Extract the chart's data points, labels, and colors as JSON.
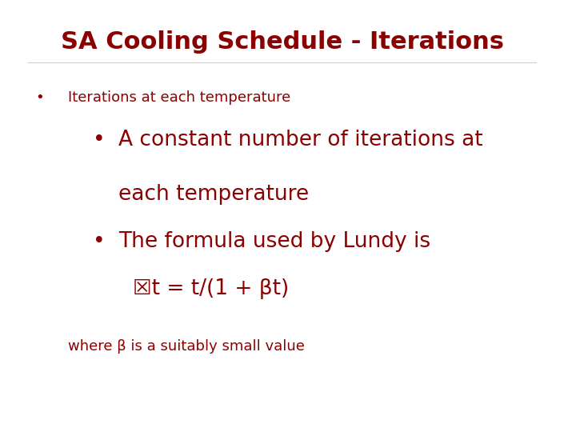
{
  "title": "SA Cooling Schedule - Iterations",
  "title_color": "#8B0000",
  "title_fontsize": 22,
  "title_fontweight": "bold",
  "background_color": "#FFFFFF",
  "bullet1_text": "Iterations at each temperature",
  "bullet1_fontsize": 13,
  "bullet_color": "#8B0000",
  "sub_bullet1_line1": "A constant number of iterations at",
  "sub_bullet1_line2": "each temperature",
  "sub_bullet2": "The formula used by Lundy is",
  "formula_line": "☒t = t/(1 + βt)",
  "footer": "where β is a suitably small value",
  "content_color": "#8B0000",
  "content_fontsize": 19,
  "footer_fontsize": 13,
  "footer_color": "#8B0000"
}
